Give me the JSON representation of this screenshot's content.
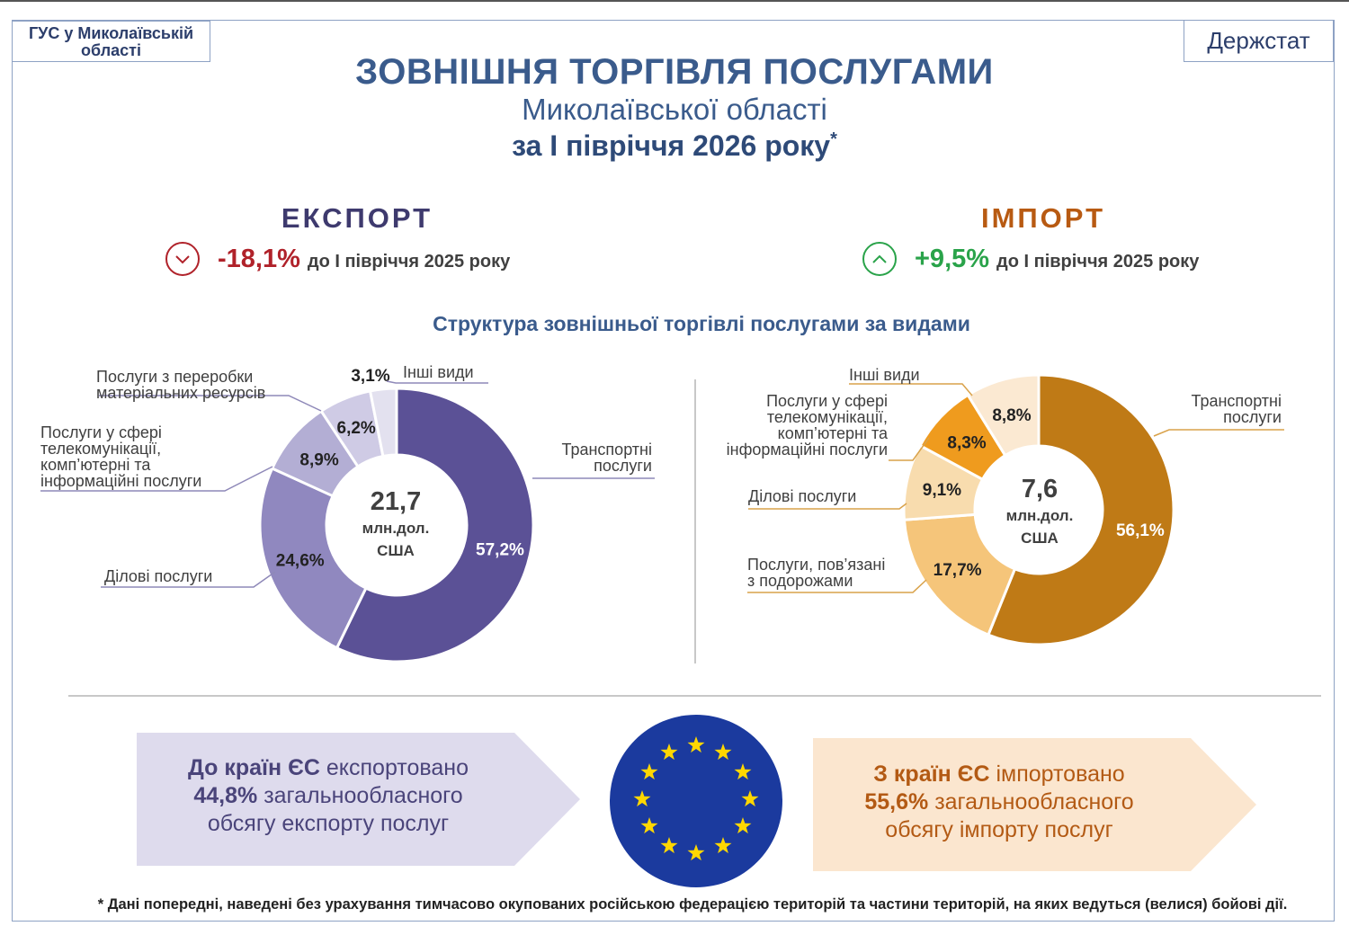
{
  "header": {
    "org": [
      "ГУС у Миколаївській",
      "області"
    ],
    "brand": "Держстат",
    "title": "ЗОВНІШНЯ ТОРГІВЛЯ ПОСЛУГАМИ",
    "subtitle": "Миколаївської області",
    "period": "за І півріччя 2026 року",
    "period_mark": "*"
  },
  "export": {
    "heading": "ЕКСПОРТ",
    "change": "-18,1%",
    "change_text": "до І півріччя 2025 року",
    "trend_icon": "chevron-down-icon",
    "color": "#b0222a"
  },
  "import": {
    "heading": "ІМПОРТ",
    "change": "+9,5%",
    "change_text": "до І півріччя 2025 року",
    "trend_icon": "chevron-up-icon",
    "color": "#2aa34a"
  },
  "structure_title": "Структура зовнішньої торгівлі послугами за видами",
  "chart_data": [
    {
      "type": "pie",
      "subtype": "donut",
      "center_value": "21,7",
      "center_unit": [
        "млн.дол.",
        "США"
      ],
      "slices": [
        {
          "label": [
            "Транспортні",
            "послуги"
          ],
          "value": 57.2,
          "value_label": "57,2%",
          "color": "#5b5196"
        },
        {
          "label": [
            "Ділові послуги"
          ],
          "value": 24.6,
          "value_label": "24,6%",
          "color": "#9088bf"
        },
        {
          "label": [
            "Послуги у сфері",
            "телекомунікації,",
            "комп’ютерні та",
            "інформаційні послуги"
          ],
          "value": 8.9,
          "value_label": "8,9%",
          "color": "#b3aed4"
        },
        {
          "label": [
            "Послуги з переробки",
            "матеріальних ресурсів"
          ],
          "value": 6.2,
          "value_label": "6,2%",
          "color": "#cfcbe5"
        },
        {
          "label": [
            "Інші види"
          ],
          "value": 3.1,
          "value_label": "3,1%",
          "color": "#e3e1ef"
        }
      ]
    },
    {
      "type": "pie",
      "subtype": "donut",
      "center_value": "7,6",
      "center_unit": [
        "млн.дол.",
        "США"
      ],
      "slices": [
        {
          "label": [
            "Транспортні",
            "послуги"
          ],
          "value": 56.1,
          "value_label": "56,1%",
          "color": "#bf7a16"
        },
        {
          "label": [
            "Послуги, пов’язані",
            "з подорожами"
          ],
          "value": 17.7,
          "value_label": "17,7%",
          "color": "#f5c57a"
        },
        {
          "label": [
            "Ділові послуги"
          ],
          "value": 9.1,
          "value_label": "9,1%",
          "color": "#f8dcae"
        },
        {
          "label": [
            "Послуги у сфері",
            "телекомунікації,",
            "комп’ютерні та",
            "інформаційні послуги"
          ],
          "value": 8.3,
          "value_label": "8,3%",
          "color": "#ef9b1e"
        },
        {
          "label": [
            "Інші види"
          ],
          "value": 8.8,
          "value_label": "8,8%",
          "color": "#fbe9d2"
        }
      ]
    }
  ],
  "eu_export": {
    "line1_bold": "До країн ЄС",
    "line1_rest": " експортовано",
    "line2_bold": "44,8%",
    "line2_rest": " загальнообласного",
    "line3": "обсягу експорту послуг"
  },
  "eu_import": {
    "line1_bold": "З країн ЄС",
    "line1_rest": " імпортовано",
    "line2_bold": "55,6%",
    "line2_rest": " загальнообласного",
    "line3": "обсягу імпорту послуг"
  },
  "footnote": "* Дані попередні, наведені без урахування тимчасово окупованих російською федерацією територій та частини територій, на яких ведуться (велися) бойові дії."
}
